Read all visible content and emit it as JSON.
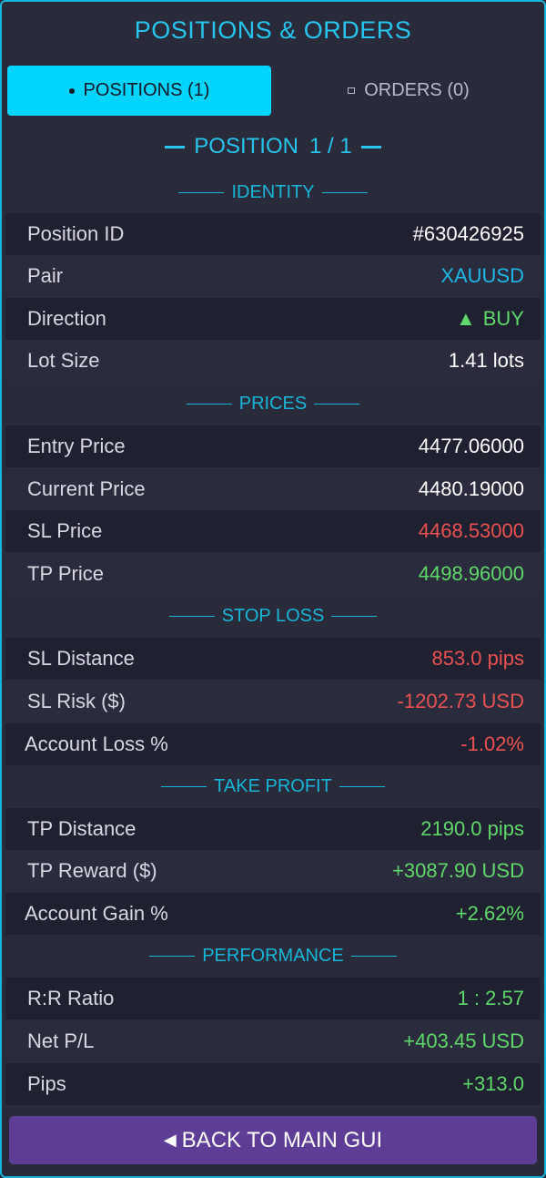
{
  "title": "POSITIONS & ORDERS",
  "tabs": {
    "positions": "POSITIONS (1)",
    "orders": "ORDERS (0)"
  },
  "position_header": {
    "label": "POSITION",
    "index": "1 / 1"
  },
  "sections": {
    "identity": "IDENTITY",
    "prices": "PRICES",
    "stop_loss": "STOP LOSS",
    "take_profit": "TAKE PROFIT",
    "performance": "PERFORMANCE"
  },
  "identity": {
    "position_id": {
      "label": "Position ID",
      "value": "#630426925"
    },
    "pair": {
      "label": "Pair",
      "value": "XAUUSD"
    },
    "direction": {
      "label": "Direction",
      "value": "BUY",
      "icon": "triangle-up-icon"
    },
    "lot_size": {
      "label": "Lot Size",
      "value": "1.41 lots"
    }
  },
  "prices": {
    "entry": {
      "label": "Entry Price",
      "value": "4477.06000"
    },
    "current": {
      "label": "Current Price",
      "value": "4480.19000"
    },
    "sl": {
      "label": "SL Price",
      "value": "4468.53000"
    },
    "tp": {
      "label": "TP Price",
      "value": "4498.96000"
    }
  },
  "stop_loss": {
    "distance": {
      "label": "SL Distance",
      "value": "853.0 pips"
    },
    "risk": {
      "label": "SL Risk ($)",
      "value": "-1202.73 USD"
    },
    "account_loss": {
      "label": "Account Loss %",
      "value": "-1.02%"
    }
  },
  "take_profit": {
    "distance": {
      "label": "TP Distance",
      "value": "2190.0 pips"
    },
    "reward": {
      "label": "TP Reward ($)",
      "value": "+3087.90 USD"
    },
    "account_gain": {
      "label": "Account Gain %",
      "value": "+2.62%"
    }
  },
  "performance": {
    "rr": {
      "label": "R:R Ratio",
      "value": "1 : 2.57"
    },
    "net_pl": {
      "label": "Net P/L",
      "value": "+403.45 USD"
    },
    "pips": {
      "label": "Pips",
      "value": "+313.0"
    }
  },
  "back_button": "BACK TO MAIN GUI",
  "colors": {
    "accent": "#00d4ff",
    "positive": "#5fd86a",
    "negative": "#ea5151",
    "button": "#5e3d96"
  }
}
